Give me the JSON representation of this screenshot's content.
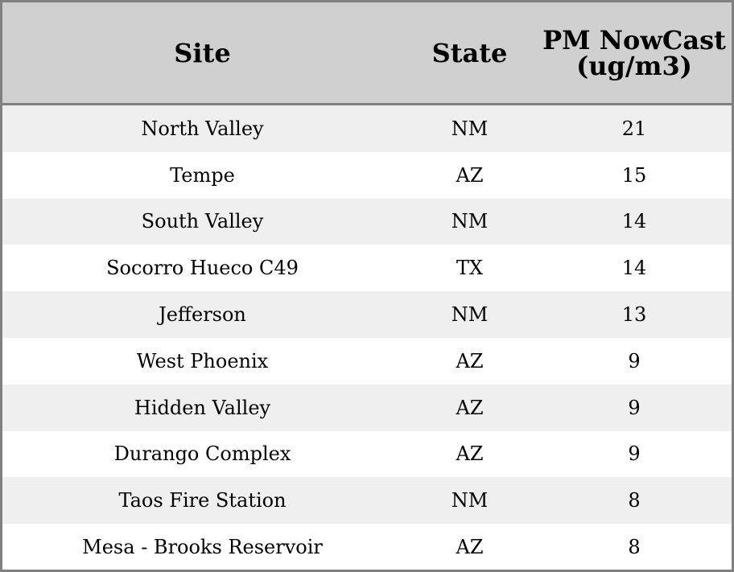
{
  "table": {
    "headers": [
      "Site",
      "State",
      "PM NowCast (ug/m3)"
    ],
    "rows": [
      [
        "North Valley",
        "NM",
        "21"
      ],
      [
        "Tempe",
        "AZ",
        "15"
      ],
      [
        "South Valley",
        "NM",
        "14"
      ],
      [
        "Socorro Hueco C49",
        "TX",
        "14"
      ],
      [
        "Jefferson",
        "NM",
        "13"
      ],
      [
        "West Phoenix",
        "AZ",
        "9"
      ],
      [
        "Hidden Valley",
        "AZ",
        "9"
      ],
      [
        "Durango Complex",
        "AZ",
        "9"
      ],
      [
        "Taos Fire Station",
        "NM",
        "8"
      ],
      [
        "Mesa - Brooks Reservoir",
        "AZ",
        "8"
      ]
    ]
  }
}
